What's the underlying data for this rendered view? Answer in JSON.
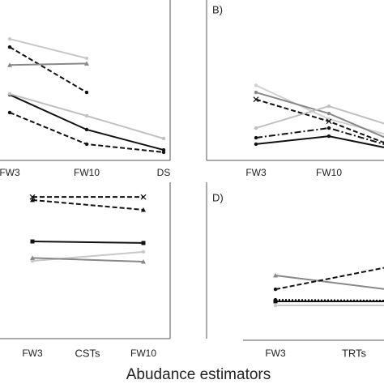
{
  "chart_data": [
    {
      "type": "line",
      "categories": [
        "FW3",
        "FW10",
        "DS"
      ],
      "ylim": [
        0,
        100
      ],
      "series": [
        {
          "color": "#c8c8c8",
          "dash": "solid",
          "marker": "circle",
          "values": [
            77.7,
            65.3,
            null
          ]
        },
        {
          "color": "#111111",
          "dash": "dashed",
          "marker": "circle",
          "values": [
            72.5,
            43.5,
            null
          ]
        },
        {
          "color": "#888888",
          "dash": "solid",
          "marker": "triangle",
          "values": [
            61,
            62,
            null
          ]
        },
        {
          "color": "#111111",
          "dash": "solid",
          "marker": "circle",
          "values": [
            42,
            19.7,
            6.7
          ]
        },
        {
          "color": "#c0c0c0",
          "dash": "solid",
          "marker": "circle",
          "values": [
            42.5,
            28.5,
            14
          ]
        },
        {
          "color": "#111111",
          "dash": "dashed",
          "marker": "circle",
          "values": [
            30.6,
            10.4,
            5.2
          ]
        }
      ]
    },
    {
      "type": "line",
      "title": "B)",
      "categories": [
        "FW3",
        "FW10",
        null
      ],
      "ylim": [
        0,
        100
      ],
      "series": [
        {
          "color": "#d0d0d0",
          "dash": "solid",
          "marker": "circle",
          "values": [
            48,
            26.4,
            14
          ]
        },
        {
          "color": "#888888",
          "dash": "solid",
          "marker": "circle",
          "values": [
            43.5,
            30,
            10
          ]
        },
        {
          "color": "#111111",
          "dash": "dashed",
          "marker": "x",
          "values": [
            39,
            25,
            7
          ]
        },
        {
          "color": "#c0c0c0",
          "dash": "solid",
          "marker": "circle",
          "values": [
            20.7,
            34.7,
            20
          ]
        },
        {
          "color": "#111111",
          "dash": "dashdot",
          "marker": "circle",
          "values": [
            14.5,
            20.7,
            7
          ]
        },
        {
          "color": "#111111",
          "dash": "solid",
          "marker": "circle",
          "values": [
            10.4,
            15.5,
            6
          ]
        }
      ]
    },
    {
      "type": "line",
      "xlabel": "CSTs",
      "categories": [
        "FW3",
        "FW10"
      ],
      "ylim": [
        0,
        100
      ],
      "series": [
        {
          "color": "#111111",
          "dash": "dashed",
          "marker": "x",
          "values": [
            93,
            93
          ]
        },
        {
          "color": "#111111",
          "dash": "dashed",
          "marker": "triangle",
          "values": [
            91,
            84.6
          ]
        },
        {
          "color": "#111111",
          "dash": "solid",
          "marker": "square",
          "values": [
            63.8,
            62.8
          ]
        },
        {
          "color": "#c8c8c8",
          "dash": "solid",
          "marker": "circle",
          "values": [
            51,
            57
          ]
        },
        {
          "color": "#888888",
          "dash": "solid",
          "marker": "triangle",
          "values": [
            53,
            50.5
          ]
        }
      ]
    },
    {
      "type": "line",
      "title": "D)",
      "xlabel": "TRTs",
      "categories": [
        "FW3",
        null
      ],
      "ylim": [
        0,
        100
      ],
      "series": [
        {
          "color": "#888888",
          "dash": "solid",
          "marker": "triangle",
          "values": [
            41.5,
            32.4
          ]
        },
        {
          "color": "#111111",
          "dash": "dashed",
          "marker": "circle",
          "values": [
            32.4,
            46.8
          ]
        },
        {
          "color": "#111111",
          "dash": "solid",
          "marker": "square",
          "values": [
            24.5,
            24.5
          ]
        },
        {
          "color": "#111111",
          "dash": "dotted",
          "marker": "circle",
          "values": [
            25.5,
            25
          ]
        },
        {
          "color": "#c8c8c8",
          "dash": "solid",
          "marker": "circle",
          "values": [
            21.8,
            21.8
          ]
        }
      ]
    }
  ],
  "supxlabel": "Abudance estimators"
}
